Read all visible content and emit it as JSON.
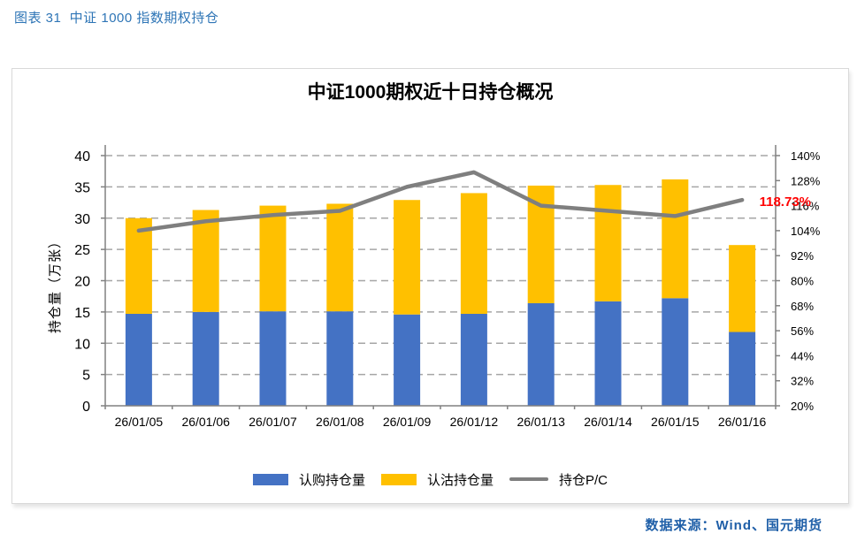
{
  "page": {
    "figure_caption": "图表 31  中证 1000 指数期权持仓",
    "source": "数据来源：Wind、国元期货"
  },
  "chart": {
    "title": "中证1000期权近十日持仓概况",
    "y_axis_title": "持仓量（万张）",
    "annotation": "118.73%",
    "legend_labels": [
      "认购持仓量",
      "认沽持仓量",
      "持仓P/C"
    ]
  },
  "colors": {
    "call_bar": "#4472C4",
    "put_bar": "#FFC000",
    "pc_line": "#7F7F7F",
    "annotation_red": "#FF0000",
    "caption_blue": "#2E75B6",
    "source_blue": "#1F5FA8",
    "grid_gray": "#A6A6A6",
    "axis_gray": "#808080",
    "tick_text": "#000000"
  },
  "chart_data": {
    "type": "bar",
    "subtype": "stacked-bars-with-line-overlay",
    "title": "中证1000期权近十日持仓概况",
    "ylabel_left": "持仓量（万张）",
    "ylabel_right": "",
    "categories": [
      "26/01/05",
      "26/01/06",
      "26/01/07",
      "26/01/08",
      "26/01/09",
      "26/01/12",
      "26/01/13",
      "26/01/14",
      "26/01/15",
      "26/01/16"
    ],
    "series": [
      {
        "name": "认购持仓量",
        "type": "bar",
        "stack": "positions",
        "axis": "left",
        "values": [
          14.7,
          15.0,
          15.1,
          15.1,
          14.6,
          14.7,
          16.4,
          16.7,
          17.2,
          11.8
        ]
      },
      {
        "name": "认沽持仓量",
        "type": "bar",
        "stack": "positions",
        "axis": "left",
        "values": [
          15.3,
          16.3,
          16.9,
          17.2,
          18.3,
          19.3,
          18.8,
          18.6,
          19.0,
          13.9
        ]
      },
      {
        "name": "持仓P/C",
        "type": "line",
        "axis": "right",
        "unit": "%",
        "values": [
          104,
          108.5,
          111.5,
          113.5,
          125,
          132,
          116,
          113.5,
          111,
          118.73
        ]
      }
    ],
    "stack_totals": [
      30.0,
      31.3,
      32.0,
      32.3,
      32.9,
      34.0,
      35.2,
      35.3,
      36.2,
      25.7
    ],
    "left_axis": {
      "label": "持仓量（万张）",
      "min": 0,
      "max": 40,
      "tick_step": 5
    },
    "right_axis": {
      "min": 20,
      "max": 140,
      "tick_step": 12,
      "suffix": "%"
    },
    "annotation": {
      "text": "118.73%",
      "series": "持仓P/C",
      "category": "26/01/16"
    },
    "legend_position": "bottom",
    "grid": "dashed-horizontal"
  }
}
